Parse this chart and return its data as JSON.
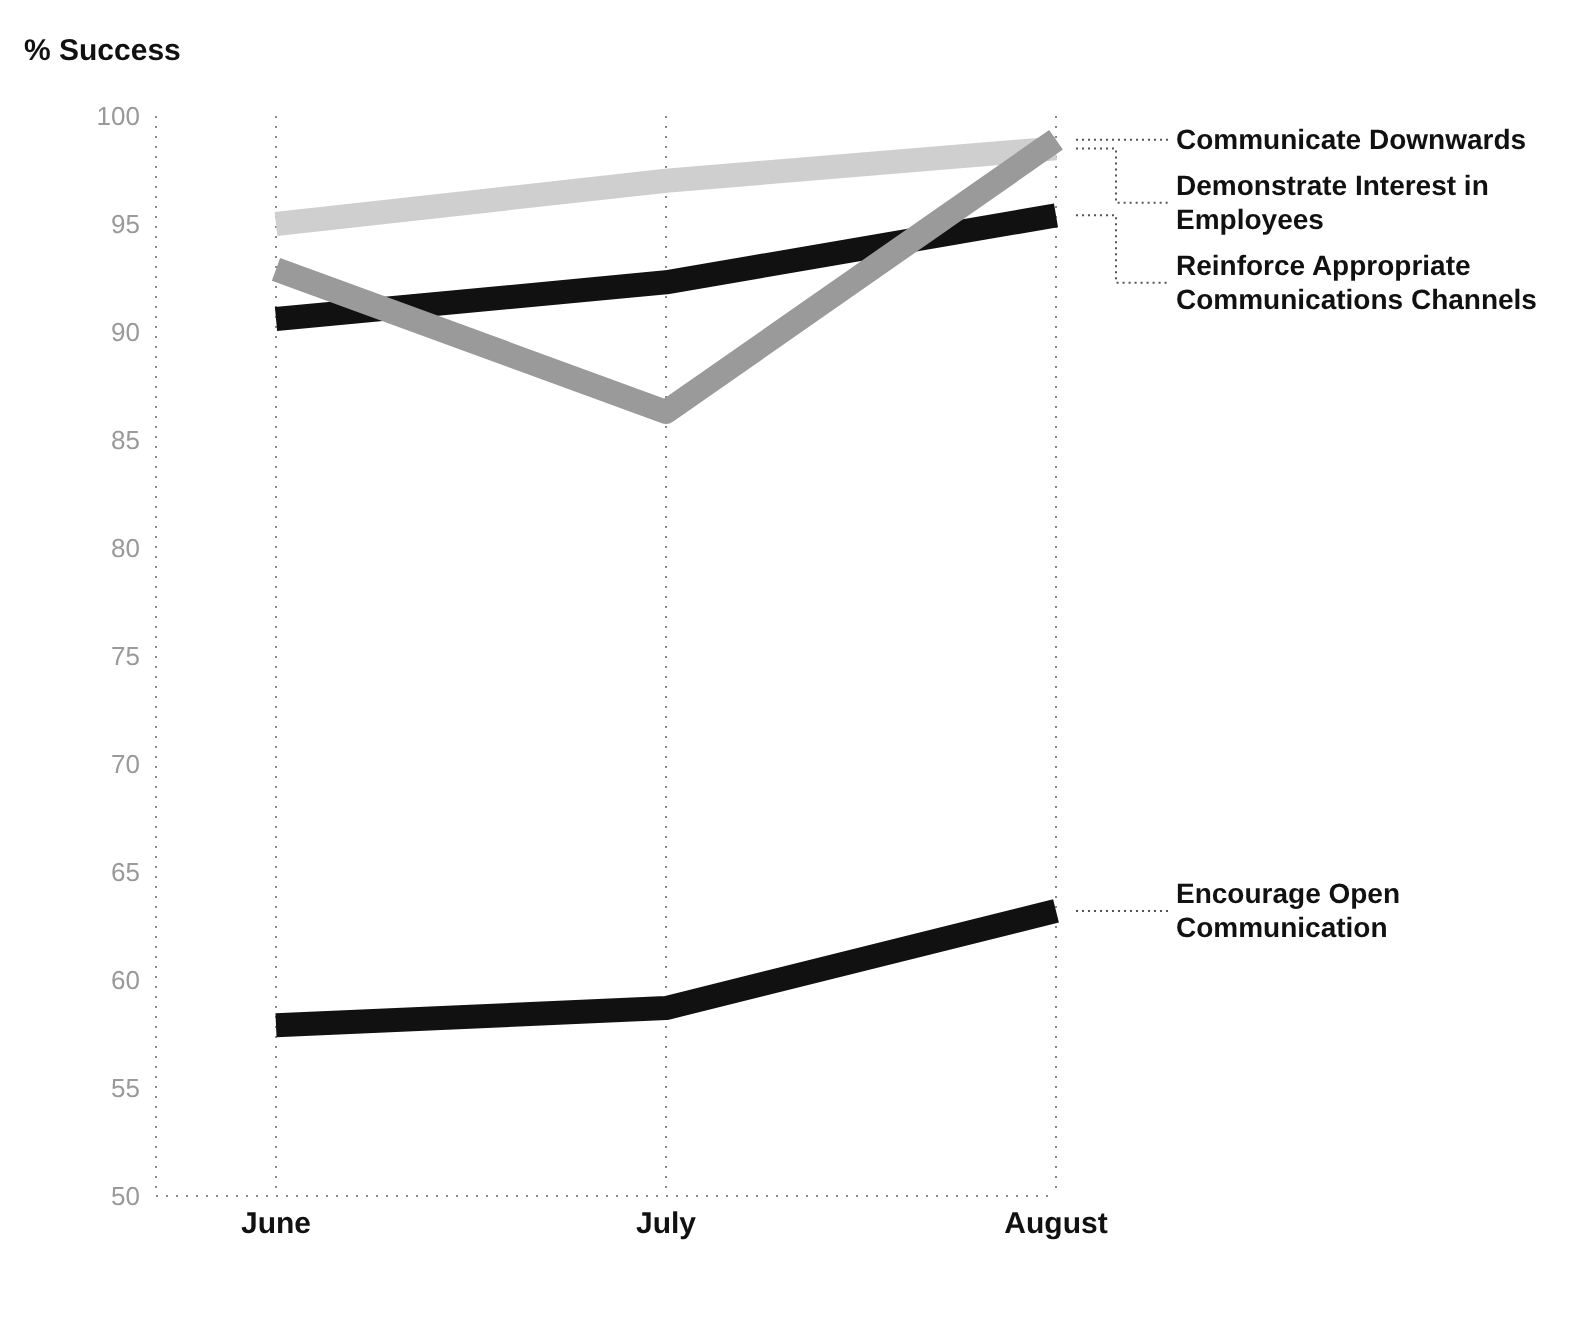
{
  "chart_data": {
    "type": "line",
    "ylabel": "% Success",
    "categories": [
      "June",
      "July",
      "August"
    ],
    "series": [
      {
        "name": "Demonstrate Interest in Employees",
        "color": "#cfcfcf",
        "values": [
          95,
          97,
          98.5
        ]
      },
      {
        "name": "Reinforce Appropriate Communications Channels",
        "color": "#111111",
        "values": [
          90.6,
          92.3,
          95.4
        ]
      },
      {
        "name": "Communicate Downwards",
        "color": "#9a9a9a",
        "values": [
          92.9,
          86.3,
          98.9
        ]
      },
      {
        "name": "Encourage Open Communication",
        "color": "#111111",
        "values": [
          57.9,
          58.7,
          63.2
        ]
      }
    ],
    "ylim": [
      50,
      100
    ],
    "yticks": [
      50,
      55,
      60,
      65,
      70,
      75,
      80,
      85,
      90,
      95,
      100
    ],
    "grid": "x",
    "marker": "none",
    "line_style": "solid",
    "legend": false
  }
}
